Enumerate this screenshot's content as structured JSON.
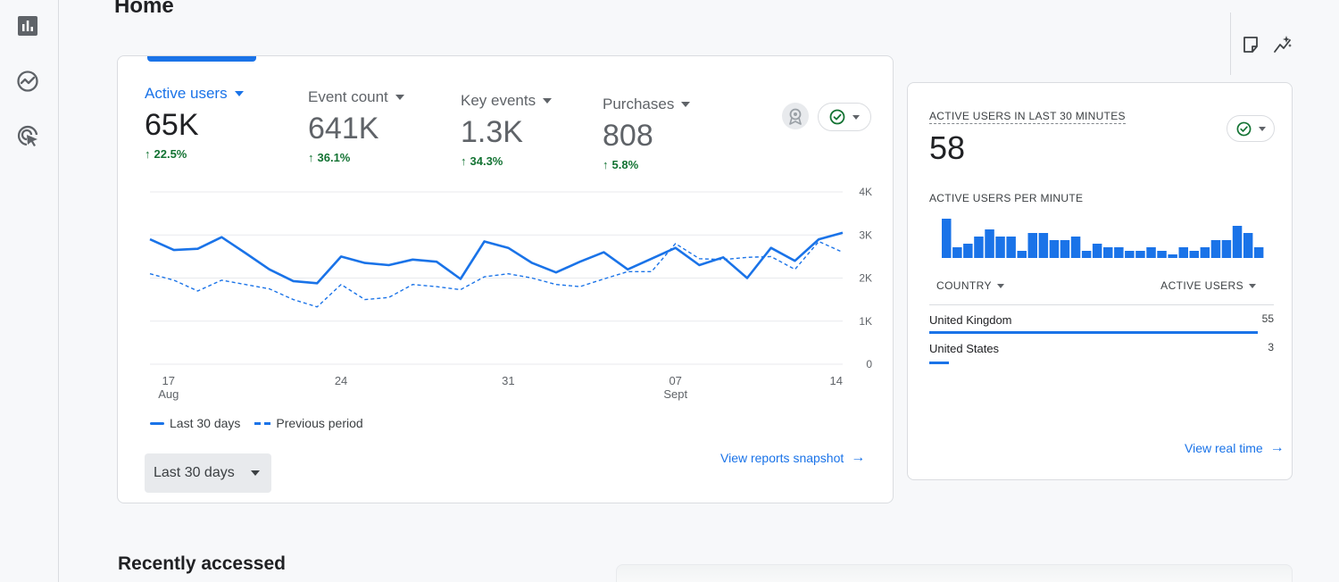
{
  "page": {
    "title": "Home"
  },
  "sidenav": {
    "icons": [
      "reports-icon",
      "explore-icon",
      "advertising-icon"
    ]
  },
  "toolbar": {
    "icons": [
      "note-icon",
      "insights-sparkle-icon"
    ]
  },
  "overview": {
    "metrics": [
      {
        "label": "Active users",
        "value": "65K",
        "change": "22.5%",
        "active": true
      },
      {
        "label": "Event count",
        "value": "641K",
        "change": "36.1%",
        "active": false
      },
      {
        "label": "Key events",
        "value": "1.3K",
        "change": "34.3%",
        "active": false
      },
      {
        "label": "Purchases",
        "value": "808",
        "change": "5.8%",
        "active": false
      }
    ],
    "legend": {
      "current": "Last 30 days",
      "previous": "Previous period"
    },
    "date_range": "Last 30 days",
    "link": "View reports snapshot"
  },
  "chart_data": {
    "type": "line",
    "x_tick_labels": [
      {
        "day": "17",
        "month": "Aug"
      },
      {
        "day": "24",
        "month": ""
      },
      {
        "day": "31",
        "month": ""
      },
      {
        "day": "07",
        "month": "Sept"
      },
      {
        "day": "14",
        "month": ""
      }
    ],
    "y_tick_labels": [
      "4K",
      "3K",
      "2K",
      "1K",
      "0"
    ],
    "ylim": [
      0,
      4000
    ],
    "series": [
      {
        "name": "Last 30 days",
        "style": "solid",
        "color": "#1a73e8",
        "values": [
          2900,
          2650,
          2680,
          2950,
          2580,
          2200,
          1930,
          1880,
          2500,
          2350,
          2300,
          2430,
          2380,
          1980,
          2850,
          2700,
          2350,
          2130,
          2380,
          2600,
          2200,
          2450,
          2700,
          2300,
          2480,
          2000,
          2700,
          2400,
          2900,
          3050
        ]
      },
      {
        "name": "Previous period",
        "style": "dashed",
        "color": "#1a73e8",
        "values": [
          2100,
          1950,
          1700,
          1950,
          1850,
          1750,
          1500,
          1330,
          1850,
          1500,
          1550,
          1850,
          1800,
          1730,
          2030,
          2100,
          2000,
          1850,
          1800,
          1980,
          2150,
          2150,
          2800,
          2450,
          2430,
          2480,
          2500,
          2200,
          2850,
          2600
        ]
      }
    ]
  },
  "realtime": {
    "title": "ACTIVE USERS IN LAST 30 MINUTES",
    "value": "58",
    "per_minute_label": "ACTIVE USERS PER MINUTE",
    "bars": [
      11,
      3,
      4,
      6,
      8,
      6,
      6,
      2,
      7,
      7,
      5,
      5,
      6,
      2,
      4,
      3,
      3,
      2,
      2,
      3,
      2,
      1,
      3,
      2,
      3,
      5,
      5,
      9,
      7,
      3
    ],
    "table": {
      "col_country": "COUNTRY",
      "col_users": "ACTIVE USERS",
      "rows": [
        {
          "country": "United Kingdom",
          "users": "55",
          "share": 1.0
        },
        {
          "country": "United States",
          "users": "3",
          "share": 0.055
        }
      ]
    },
    "link": "View real time"
  },
  "recent": {
    "title": "Recently accessed"
  },
  "colors": {
    "accent": "#1a73e8",
    "positive": "#137333",
    "text": "#202124",
    "muted": "#5f6368"
  }
}
